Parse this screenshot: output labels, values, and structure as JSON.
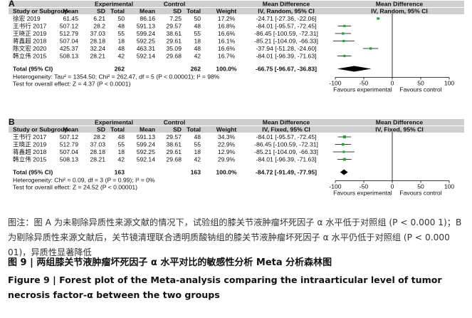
{
  "columns": {
    "study": "Study or Subgroup",
    "experimental": "Experimental",
    "control": "Control",
    "mean": "Mean",
    "sd": "SD",
    "total": "Total",
    "weight": "Weight",
    "md_a": "Mean Difference",
    "ci_a": "IV, Random, 95% CI",
    "ci_b": "IV, Fixed, 95% CI"
  },
  "chart_data": [
    {
      "type": "forest",
      "panel": "A",
      "model": "IV, Random, 95% CI",
      "rows": [
        {
          "study": "徐宏 2019",
          "e_mean": "61.45",
          "e_sd": "6.21",
          "e_total": "50",
          "c_mean": "86.16",
          "c_sd": "7.25",
          "c_total": "50",
          "weight": "17.2%",
          "ci_text": "-24.71 [-27.36, -22.06]",
          "md": -24.71,
          "lo": -27.36,
          "hi": -22.06
        },
        {
          "study": "王书行 2017",
          "e_mean": "507.12",
          "e_sd": "28.2",
          "e_total": "48",
          "c_mean": "591.13",
          "c_sd": "29.57",
          "c_total": "48",
          "weight": "16.8%",
          "ci_text": "-84.01 [-95.57, -72.45]",
          "md": -84.01,
          "lo": -95.57,
          "hi": -72.45
        },
        {
          "study": "王晓正 2019",
          "e_mean": "512.79",
          "e_sd": "37.03",
          "e_total": "55",
          "c_mean": "599.24",
          "c_sd": "38.61",
          "c_total": "55",
          "weight": "16.6%",
          "ci_text": "-86.45 [-100.59, -72.31]",
          "md": -86.45,
          "lo": -100.59,
          "hi": -72.31
        },
        {
          "study": "蒋鑫超 2018",
          "e_mean": "507.04",
          "e_sd": "28.18",
          "e_total": "18",
          "c_mean": "592.25",
          "c_sd": "29.61",
          "c_total": "18",
          "weight": "16.1%",
          "ci_text": "-85.21 [-104.09, -66.33]",
          "md": -85.21,
          "lo": -104.09,
          "hi": -66.33
        },
        {
          "study": "陈文宏 2020",
          "e_mean": "425.37",
          "e_sd": "32.24",
          "e_total": "48",
          "c_mean": "463.31",
          "c_sd": "35.09",
          "c_total": "48",
          "weight": "16.6%",
          "ci_text": "-37.94 [-51.28, -24.60]",
          "md": -37.94,
          "lo": -51.28,
          "hi": -24.6
        },
        {
          "study": "韩立伟 2015",
          "e_mean": "508.13",
          "e_sd": "28.21",
          "e_total": "42",
          "c_mean": "592.14",
          "c_sd": "29.68",
          "c_total": "42",
          "weight": "16.7%",
          "ci_text": "-84.01 [-96.39, -71.63]",
          "md": -84.01,
          "lo": -96.39,
          "hi": -71.63
        }
      ],
      "total": {
        "label": "Total (95% CI)",
        "e_total": "262",
        "c_total": "262",
        "weight": "100.0%",
        "ci_text": "-66.75 [-96.67, -36.83]",
        "md": -66.75,
        "lo": -96.67,
        "hi": -36.83
      },
      "heterogeneity": "Heterogeneity: Tau² = 1354.50; Chi² = 262.47, df = 5 (P < 0.00001); I² = 98%",
      "overall_effect": "Test for overall effect: Z = 4.37 (P < 0.0001)",
      "xlim": [
        -100,
        100
      ],
      "xticks": [
        "-100",
        "-50",
        "0",
        "50",
        "100"
      ],
      "favours_left": "Favours experimental",
      "favours_right": "Favours control"
    },
    {
      "type": "forest",
      "panel": "B",
      "model": "IV, Fixed, 95% CI",
      "rows": [
        {
          "study": "王书行 2017",
          "e_mean": "507.12",
          "e_sd": "28.2",
          "e_total": "48",
          "c_mean": "591.13",
          "c_sd": "29.57",
          "c_total": "48",
          "weight": "34.3%",
          "ci_text": "-84.01 [-95.57, -72.45]",
          "md": -84.01,
          "lo": -95.57,
          "hi": -72.45
        },
        {
          "study": "王晓正 2019",
          "e_mean": "512.79",
          "e_sd": "37.03",
          "e_total": "55",
          "c_mean": "599.24",
          "c_sd": "38.61",
          "c_total": "55",
          "weight": "22.9%",
          "ci_text": "-86.45 [-100.59, -72.31]",
          "md": -86.45,
          "lo": -100.59,
          "hi": -72.31
        },
        {
          "study": "蒋鑫超 2018",
          "e_mean": "507.04",
          "e_sd": "28.18",
          "e_total": "18",
          "c_mean": "592.25",
          "c_sd": "29.61",
          "c_total": "18",
          "weight": "12.9%",
          "ci_text": "-85.21 [-104.09, -66.33]",
          "md": -85.21,
          "lo": -104.09,
          "hi": -66.33
        },
        {
          "study": "韩立伟 2015",
          "e_mean": "508.13",
          "e_sd": "28.21",
          "e_total": "42",
          "c_mean": "592.14",
          "c_sd": "29.68",
          "c_total": "42",
          "weight": "29.9%",
          "ci_text": "-84.01 [-96.39, -71.63]",
          "md": -84.01,
          "lo": -96.39,
          "hi": -71.63
        }
      ],
      "total": {
        "label": "Total (95% CI)",
        "e_total": "163",
        "c_total": "163",
        "weight": "100.0%",
        "ci_text": "-84.72 [-91.49, -77.95]",
        "md": -84.72,
        "lo": -91.49,
        "hi": -77.95
      },
      "heterogeneity": "Heterogeneity: Chi² = 0.09, df = 3 (P = 0.99); I² = 0%",
      "overall_effect": "Test for overall effect: Z = 24.52 (P < 0.00001)",
      "xlim": [
        -100,
        100
      ],
      "xticks": [
        "-100",
        "-50",
        "0",
        "50",
        "100"
      ],
      "favours_left": "Favours experimental",
      "favours_right": "Favours control"
    }
  ],
  "colors": {
    "square": "#22a83a",
    "diamond": "#000000",
    "header_bar": "#cfcfcf"
  },
  "caption": {
    "note": "图注：图 A 为未剔除异质性来源文献的情况下，试验组的膝关节液肿瘤坏死因子 α 水平低于对照组 (P < 0.000 1)；B 为剔除异质性来源文献后，关节镜清理联合透明质酸钠组的膝关节液肿瘤坏死因子 α 水平仍低于对照组 (P < 0.000 01)，异质性显著降低",
    "zh_title": "图 9 | 两组膝关节液肿瘤坏死因子 α 水平对比的敏感性分析 Meta 分析森林图",
    "en_title": "Figure 9 | Forest plot of the Meta-analysis comparing the intraarticular level of tumor necrosis factor-α between the two groups"
  }
}
